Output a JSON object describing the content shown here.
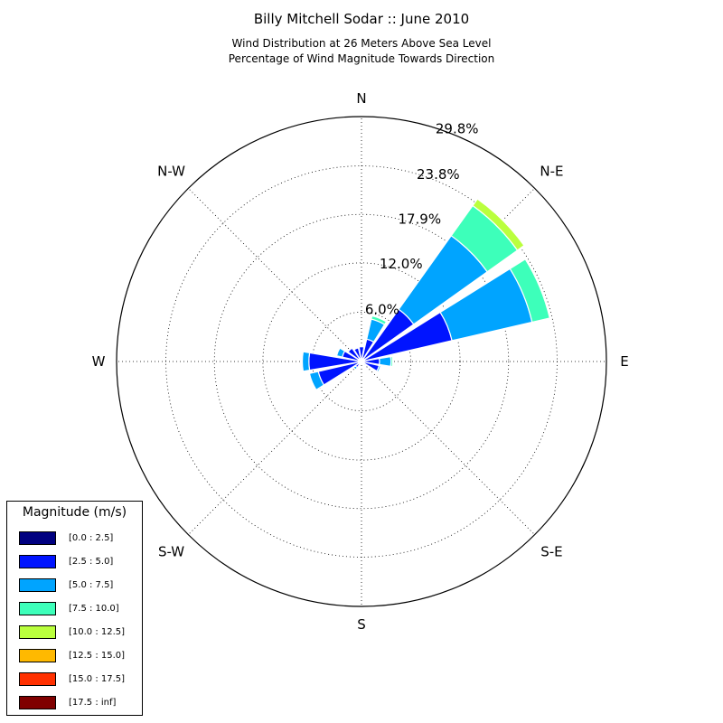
{
  "header": {
    "title": "Billy Mitchell Sodar :: June 2010",
    "subtitle_line1": "Wind Distribution at 26 Meters Above Sea Level",
    "subtitle_line2": "Percentage of Wind Magnitude Towards Direction"
  },
  "chart_data": {
    "type": "windrose",
    "directions": [
      "N",
      "N-E",
      "E",
      "S-E",
      "S",
      "S-W",
      "W",
      "N-W"
    ],
    "radial_ticks": [
      6.0,
      12.0,
      17.9,
      23.8,
      29.8
    ],
    "radial_tick_labels": [
      "6.0%",
      "12.0%",
      "17.9%",
      "23.8%",
      "29.8%"
    ],
    "rmax": 29.8,
    "grid": true,
    "legend_title": "Magnitude (m/s)",
    "legend_position": "lower-left",
    "bins": [
      {
        "label": "[0.0 : 2.5]",
        "color": "#000080"
      },
      {
        "label": "[2.5 : 5.0]",
        "color": "#0014ff"
      },
      {
        "label": "[5.0 : 7.5]",
        "color": "#00a4ff"
      },
      {
        "label": "[7.5 : 10.0]",
        "color": "#3dffba"
      },
      {
        "label": "[10.0 : 12.5]",
        "color": "#baff3d"
      },
      {
        "label": "[12.5 : 15.0]",
        "color": "#ffb900"
      },
      {
        "label": "[15.0 : 17.5]",
        "color": "#ff3000"
      },
      {
        "label": "[17.5 : inf]",
        "color": "#800000"
      }
    ],
    "sectors": [
      {
        "dir": 0,
        "values": [
          0.2,
          1.6,
          0.0,
          0.0,
          0.0,
          0,
          0,
          0
        ]
      },
      {
        "dir": 22.5,
        "values": [
          0.3,
          2.5,
          2.5,
          0.4,
          0.0,
          0,
          0,
          0
        ]
      },
      {
        "dir": 45,
        "values": [
          0.3,
          7.5,
          11.0,
          4.5,
          1.0,
          0,
          0,
          0
        ]
      },
      {
        "dir": 67.5,
        "values": [
          0.3,
          11.0,
          10.0,
          2.2,
          0.0,
          0,
          0,
          0
        ]
      },
      {
        "dir": 90,
        "values": [
          0.2,
          2.0,
          1.4,
          0.2,
          0.0,
          0,
          0,
          0
        ]
      },
      {
        "dir": 112.5,
        "values": [
          0.2,
          2.0,
          0.2,
          0.0,
          0.0,
          0,
          0,
          0
        ]
      },
      {
        "dir": 135,
        "values": [
          0.1,
          0.4,
          0.0,
          0.0,
          0.0,
          0,
          0,
          0
        ]
      },
      {
        "dir": 157.5,
        "values": [
          0.1,
          0.2,
          0.0,
          0.0,
          0.0,
          0,
          0,
          0
        ]
      },
      {
        "dir": 180,
        "values": [
          0.1,
          0.2,
          0.0,
          0.0,
          0.0,
          0,
          0,
          0
        ]
      },
      {
        "dir": 202.5,
        "values": [
          0.1,
          0.2,
          0.0,
          0.0,
          0.0,
          0,
          0,
          0
        ]
      },
      {
        "dir": 225,
        "values": [
          0.3,
          0.6,
          0.3,
          0.0,
          0.0,
          0,
          0,
          0
        ]
      },
      {
        "dir": 247.5,
        "values": [
          0.4,
          5.0,
          1.1,
          0.0,
          0.0,
          0,
          0,
          0
        ]
      },
      {
        "dir": 270,
        "values": [
          0.4,
          6.0,
          0.8,
          0.0,
          0.0,
          0,
          0,
          0
        ]
      },
      {
        "dir": 292.5,
        "values": [
          0.4,
          2.0,
          0.7,
          0.0,
          0.0,
          0,
          0,
          0
        ]
      },
      {
        "dir": 315,
        "values": [
          0.4,
          1.6,
          0.0,
          0.0,
          0.0,
          0,
          0,
          0
        ]
      },
      {
        "dir": 337.5,
        "values": [
          0.3,
          1.4,
          0.0,
          0.0,
          0.0,
          0,
          0,
          0
        ]
      }
    ]
  }
}
